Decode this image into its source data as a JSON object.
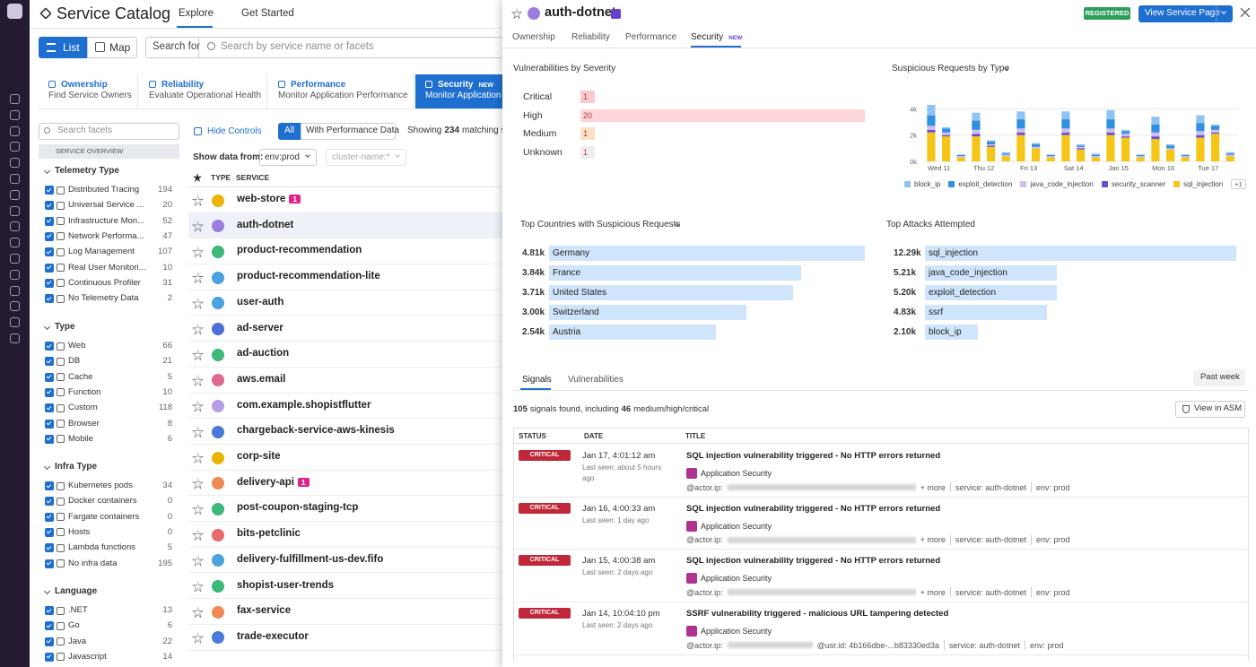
{
  "header": {
    "title": "Service Catalog",
    "tabs": [
      "Explore",
      "Get Started"
    ]
  },
  "toolbar": {
    "list": "List",
    "map": "Map",
    "search_label": "Search for",
    "search_placeholder": "Search by service name or facets"
  },
  "cards": [
    {
      "title": "Ownership",
      "subtitle": "Find Service Owners"
    },
    {
      "title": "Reliability",
      "subtitle": "Evaluate Operational Health"
    },
    {
      "title": "Performance",
      "subtitle": "Monitor Application Performance"
    },
    {
      "title": "Security",
      "badge": "NEW",
      "subtitle": "Monitor Application S"
    }
  ],
  "facets": {
    "search_placeholder": "Search facets",
    "section": "SERVICE OVERVIEW",
    "groups": [
      {
        "title": "Telemetry Type",
        "items": [
          {
            "label": "Distributed Tracing",
            "count": 194
          },
          {
            "label": "Universal Service ...",
            "count": 20
          },
          {
            "label": "Infrastructure Mon...",
            "count": 52
          },
          {
            "label": "Network Performa...",
            "count": 47
          },
          {
            "label": "Log Management",
            "count": 107
          },
          {
            "label": "Real User Monitori...",
            "count": 10
          },
          {
            "label": "Continuous Profiler",
            "count": 31
          },
          {
            "label": "No Telemetry Data",
            "count": 2
          }
        ]
      },
      {
        "title": "Type",
        "items": [
          {
            "label": "Web",
            "count": 66
          },
          {
            "label": "DB",
            "count": 21
          },
          {
            "label": "Cache",
            "count": 5
          },
          {
            "label": "Function",
            "count": 10
          },
          {
            "label": "Custom",
            "count": 118
          },
          {
            "label": "Browser",
            "count": 8
          },
          {
            "label": "Mobile",
            "count": 6
          }
        ]
      },
      {
        "title": "Infra Type",
        "items": [
          {
            "label": "Kubernetes pods",
            "count": 34
          },
          {
            "label": "Docker containers",
            "count": 0
          },
          {
            "label": "Fargate containers",
            "count": 0
          },
          {
            "label": "Hosts",
            "count": 0
          },
          {
            "label": "Lambda functions",
            "count": 5
          },
          {
            "label": "No infra data",
            "count": 195
          }
        ]
      },
      {
        "title": "Language",
        "items": [
          {
            "label": ".NET",
            "count": 13
          },
          {
            "label": "Go",
            "count": 6
          },
          {
            "label": "Java",
            "count": 22
          },
          {
            "label": "Javascript",
            "count": 14
          }
        ]
      }
    ]
  },
  "list": {
    "hide_controls": "Hide Controls",
    "filters": [
      "All",
      "With Performance Data"
    ],
    "showing": "Showing",
    "count": 234,
    "showing_rest": "matching ser",
    "show_data_from": "Show data from:",
    "env": "env:prod",
    "cluster": "cluster-name:*",
    "columns": [
      "TYPE",
      "SERVICE"
    ],
    "services": [
      {
        "name": "web-store",
        "color": "#eab308",
        "alerts": 1
      },
      {
        "name": "auth-dotnet",
        "color": "#9b7fe0"
      },
      {
        "name": "product-recommendation",
        "color": "#3cb878"
      },
      {
        "name": "product-recommendation-lite",
        "color": "#4aa3df"
      },
      {
        "name": "user-auth",
        "color": "#4aa3df"
      },
      {
        "name": "ad-server",
        "color": "#4b6fd6"
      },
      {
        "name": "ad-auction",
        "color": "#3cb878"
      },
      {
        "name": "aws.email",
        "color": "#e06a8f"
      },
      {
        "name": "com.example.shopistflutter",
        "color": "#b69ee6"
      },
      {
        "name": "chargeback-service-aws-kinesis",
        "color": "#4b7bd8"
      },
      {
        "name": "corp-site",
        "color": "#eab308"
      },
      {
        "name": "delivery-api",
        "color": "#ef8a55",
        "alerts": 1
      },
      {
        "name": "post-coupon-staging-tcp",
        "color": "#3cb878"
      },
      {
        "name": "bits-petclinic",
        "color": "#e86a6a"
      },
      {
        "name": "delivery-fulfillment-us-dev.fifo",
        "color": "#4aa3df"
      },
      {
        "name": "shopist-user-trends",
        "color": "#3cb878"
      },
      {
        "name": "fax-service",
        "color": "#ef8a55"
      },
      {
        "name": "trade-executor",
        "color": "#4b7bd8"
      }
    ]
  },
  "panel": {
    "title": "auth-dotnet",
    "status": "REGISTERED",
    "button": "View Service Page",
    "tabs": [
      "Ownership",
      "Reliability",
      "Performance",
      "Security"
    ],
    "tab_badge": "NEW",
    "severity": {
      "title": "Vulnerabilities by Severity",
      "rows": [
        {
          "label": "Critical",
          "value": 1,
          "color": "#f9c9cd"
        },
        {
          "label": "High",
          "value": 20,
          "color": "#fbd5d8"
        },
        {
          "label": "Medium",
          "value": 1,
          "color": "#fde0c4"
        },
        {
          "label": "Unknown",
          "value": 1,
          "color": "#eeeeee"
        }
      ]
    },
    "countries": {
      "title": "Top Countries with Suspicious Requests",
      "color": "#cfe5fb",
      "rows": [
        {
          "label": "Germany",
          "value": 4810,
          "value_label": "4.81k"
        },
        {
          "label": "France",
          "value": 3840,
          "value_label": "3.84k"
        },
        {
          "label": "United States",
          "value": 3710,
          "value_label": "3.71k"
        },
        {
          "label": "Switzerland",
          "value": 3000,
          "value_label": "3.00k"
        },
        {
          "label": "Austria",
          "value": 2540,
          "value_label": "2.54k"
        }
      ]
    },
    "attacks": {
      "title": "Top Attacks Attempted",
      "color": "#cfe5fb",
      "rows": [
        {
          "label": "sql_injection",
          "value": 12290,
          "value_label": "12.29k"
        },
        {
          "label": "java_code_injection",
          "value": 5210,
          "value_label": "5.21k"
        },
        {
          "label": "exploit_detection",
          "value": 5200,
          "value_label": "5.20k"
        },
        {
          "label": "ssrf",
          "value": 4830,
          "value_label": "4.83k"
        },
        {
          "label": "block_ip",
          "value": 2100,
          "value_label": "2.10k"
        }
      ]
    },
    "signals": {
      "tabs": [
        "Signals",
        "Vulnerabilities"
      ],
      "period": "Past week",
      "total": 105,
      "summary_mid": "signals found, including",
      "severe": 46,
      "summary_end": "medium/high/critical",
      "view": "View in ASM",
      "columns": [
        "STATUS",
        "DATE",
        "TITLE"
      ],
      "rows": [
        {
          "status": "CRITICAL",
          "date": "Jan 17, 4:01:12 am",
          "last_seen": "Last seen: about 5 hours ago",
          "title": "SQL injection vulnerability triggered - No HTTP errors returned",
          "source": "Application Security",
          "actor": "@actor.ip:",
          "extra": "+ more",
          "service": "service: auth-dotnet",
          "env": "env: prod"
        },
        {
          "status": "CRITICAL",
          "date": "Jan 16, 4:00:33 am",
          "last_seen": "Last seen: 1 day ago",
          "title": "SQL injection vulnerability triggered - No HTTP errors returned",
          "source": "Application Security",
          "actor": "@actor.ip:",
          "extra": "+ more",
          "service": "service: auth-dotnet",
          "env": "env: prod"
        },
        {
          "status": "CRITICAL",
          "date": "Jan 15, 4:00:38 am",
          "last_seen": "Last seen: 2 days ago",
          "title": "SQL injection vulnerability triggered - No HTTP errors returned",
          "source": "Application Security",
          "actor": "@actor.ip:",
          "extra": "+ more",
          "service": "service: auth-dotnet",
          "env": "env: prod"
        },
        {
          "status": "CRITICAL",
          "date": "Jan 14, 10:04:10 pm",
          "last_seen": "Last seen: 2 days ago",
          "title": "SSRF vulnerability triggered - malicious URL tampering detected",
          "source": "Application Security",
          "actor": "@actor.ip:",
          "extra": "@usr.id: 4b166dbe-...b83330ed3a",
          "service": "service: auth-dotnet",
          "env": "env: prod"
        }
      ]
    }
  },
  "chart_data": {
    "type": "bar",
    "stacked": true,
    "title": "Suspicious Requests by Type",
    "categories": [
      "Wed 11",
      null,
      null,
      "Thu 12",
      null,
      null,
      "Fri 13",
      null,
      null,
      "Sat 14",
      null,
      null,
      "Jan 15",
      null,
      null,
      "Mon 16",
      null,
      null,
      "Tue 17",
      null,
      null
    ],
    "series": [
      {
        "name": "block_ip",
        "color": "#8fc3f2",
        "values": [
          800,
          100,
          0,
          600,
          100,
          100,
          600,
          100,
          0,
          600,
          100,
          100,
          700,
          100,
          0,
          600,
          100,
          0,
          600,
          100,
          100
        ]
      },
      {
        "name": "exploit_detection",
        "color": "#2f8fe0",
        "values": [
          800,
          300,
          100,
          700,
          200,
          100,
          700,
          200,
          100,
          700,
          100,
          100,
          700,
          200,
          100,
          600,
          200,
          100,
          600,
          300,
          100
        ]
      },
      {
        "name": "java_code_injection",
        "color": "#d3bdf0",
        "values": [
          300,
          200,
          100,
          300,
          100,
          100,
          300,
          100,
          100,
          300,
          100,
          100,
          300,
          200,
          100,
          300,
          100,
          100,
          300,
          200,
          100
        ]
      },
      {
        "name": "security_scanner",
        "color": "#6a4fd0",
        "values": [
          200,
          100,
          0,
          200,
          100,
          0,
          200,
          0,
          0,
          200,
          100,
          0,
          200,
          100,
          0,
          200,
          0,
          0,
          200,
          100,
          0
        ]
      },
      {
        "name": "sql_injection",
        "color": "#f5c518",
        "values": [
          2200,
          1900,
          300,
          1900,
          1100,
          400,
          2000,
          1000,
          300,
          2000,
          900,
          300,
          2000,
          1800,
          300,
          1700,
          900,
          300,
          1800,
          2100,
          400
        ]
      }
    ],
    "legend_more": "+1",
    "ylim": [
      0,
      4500
    ],
    "yticks": [
      {
        "value": 0,
        "label": "0k"
      },
      {
        "value": 2000,
        "label": "2k"
      },
      {
        "value": 4000,
        "label": "4k"
      }
    ],
    "grid": true
  }
}
